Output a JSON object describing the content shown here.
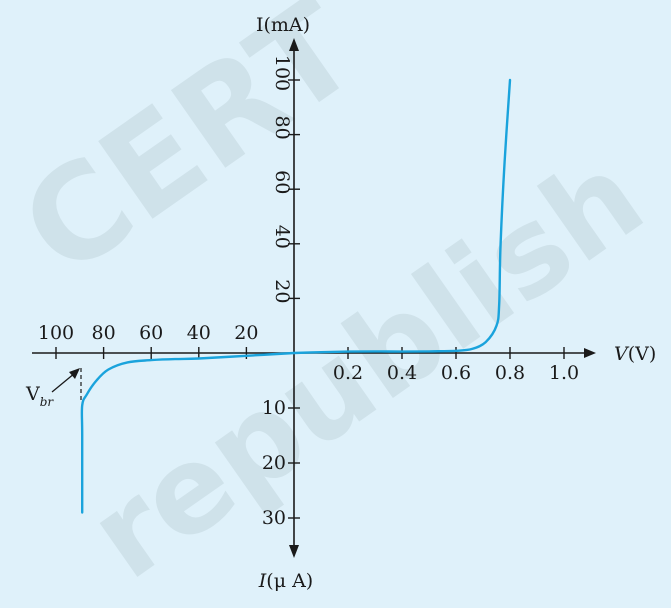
{
  "chart_data": {
    "type": "line",
    "title": "",
    "background_color": "#dff1fa",
    "watermark_color": "#cfe2ea",
    "curve_color": "#1aa3dc",
    "grid": false,
    "watermark": "CERT republish",
    "x_axis": {
      "label_prefix": "V",
      "label_unit": "(V)",
      "positive_ticks": [
        "0.2",
        "0.4",
        "0.6",
        "0.8",
        "1.0"
      ],
      "negative_ticks": [
        "100",
        "80",
        "60",
        "40",
        "20"
      ]
    },
    "y_axis": {
      "top_label": "I(mA)",
      "bottom_label_prefix": "I",
      "bottom_label_unit": "(μ A)",
      "positive_ticks": [
        "100",
        "80",
        "60",
        "40",
        "20"
      ],
      "negative_ticks": [
        "10",
        "20",
        "30"
      ]
    },
    "breakdown_label": {
      "main": "V",
      "sub": "br"
    },
    "forward_series": {
      "name": "",
      "x_unit": "V",
      "y_unit": "mA",
      "points": [
        [
          0,
          0
        ],
        [
          0.1,
          0.3
        ],
        [
          0.2,
          0.5
        ],
        [
          0.3,
          0.6
        ],
        [
          0.4,
          0.5
        ],
        [
          0.5,
          0.6
        ],
        [
          0.6,
          0.8
        ],
        [
          0.66,
          1.5
        ],
        [
          0.71,
          4
        ],
        [
          0.75,
          10
        ],
        [
          0.76,
          18
        ],
        [
          0.765,
          40
        ],
        [
          0.78,
          70
        ],
        [
          0.8,
          100
        ]
      ]
    },
    "reverse_series": {
      "name": "",
      "x_unit": "V",
      "y_unit": "μA",
      "points": [
        [
          0,
          0
        ],
        [
          -20,
          0.5
        ],
        [
          -40,
          1
        ],
        [
          -50,
          1.1
        ],
        [
          -60,
          1.3
        ],
        [
          -70,
          1.7
        ],
        [
          -78,
          3
        ],
        [
          -83,
          5
        ],
        [
          -87,
          7.5
        ],
        [
          -89,
          9.5
        ],
        [
          -89,
          15
        ],
        [
          -89,
          29
        ]
      ]
    },
    "breakdown_voltage": -89
  }
}
